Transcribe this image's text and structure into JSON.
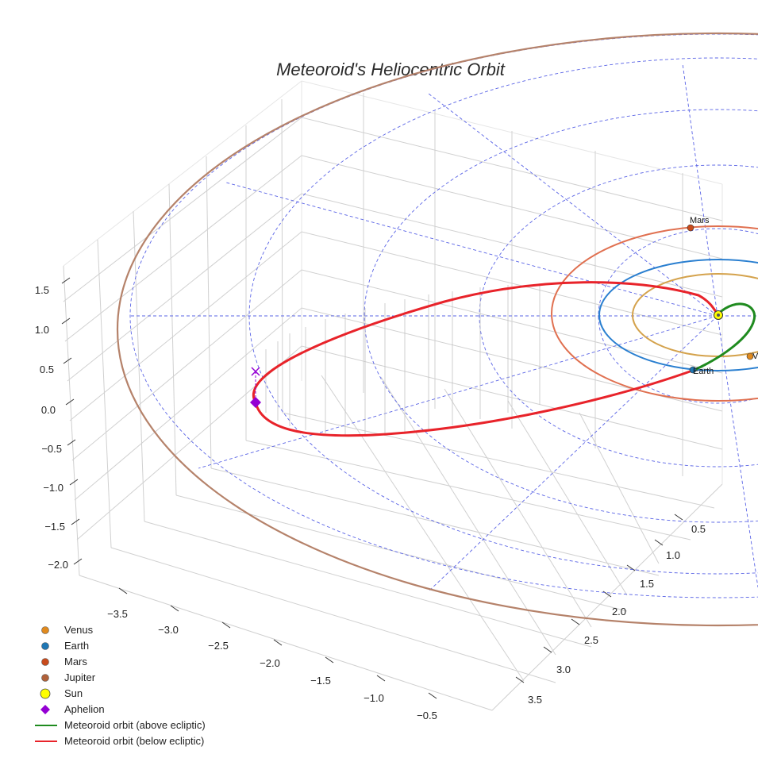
{
  "chart_data": {
    "type": "3d-orbit",
    "title": "Meteoroid's Heliocentric Orbit",
    "x_ticks": [
      "−3.5",
      "−3.0",
      "−2.5",
      "−2.0",
      "−1.5",
      "−1.0",
      "−0.5"
    ],
    "y_ticks": [
      "0.5",
      "1.0",
      "1.5",
      "2.0",
      "2.5",
      "3.0",
      "3.5"
    ],
    "z_ticks": [
      "1.5",
      "1.0",
      "0.5",
      "0.0",
      "−0.5",
      "−1.0",
      "−1.5",
      "−2.0"
    ],
    "planet_labels": [
      "Mars",
      "Venus",
      "Earth"
    ],
    "legend": [
      {
        "label": "Venus",
        "marker": "circle",
        "color": "#e08a1e"
      },
      {
        "label": "Earth",
        "marker": "circle",
        "color": "#1f77b4"
      },
      {
        "label": "Mars",
        "marker": "circle",
        "color": "#c84b1c"
      },
      {
        "label": "Jupiter",
        "marker": "circle",
        "color": "#b0613a"
      },
      {
        "label": "Sun",
        "marker": "circle-large",
        "color": "#ffff00"
      },
      {
        "label": "Aphelion",
        "marker": "diamond",
        "color": "#9400d3"
      },
      {
        "label": "Meteoroid orbit (above ecliptic)",
        "marker": "line",
        "color": "#1f8b1f"
      },
      {
        "label": "Meteoroid orbit (below ecliptic)",
        "marker": "line",
        "color": "#e8232a"
      }
    ],
    "orbits": [
      {
        "name": "Venus",
        "semi_major_au": 0.72,
        "color": "#d4a24c"
      },
      {
        "name": "Earth",
        "semi_major_au": 1.0,
        "color": "#2a7fd0"
      },
      {
        "name": "Mars",
        "semi_major_au": 1.52,
        "color": "#e07050"
      },
      {
        "name": "Jupiter",
        "semi_major_au": 5.2,
        "color": "#b5826a"
      }
    ],
    "meteoroid": {
      "aphelion_au": 3.9,
      "perihelion_au": 0.55
    }
  }
}
